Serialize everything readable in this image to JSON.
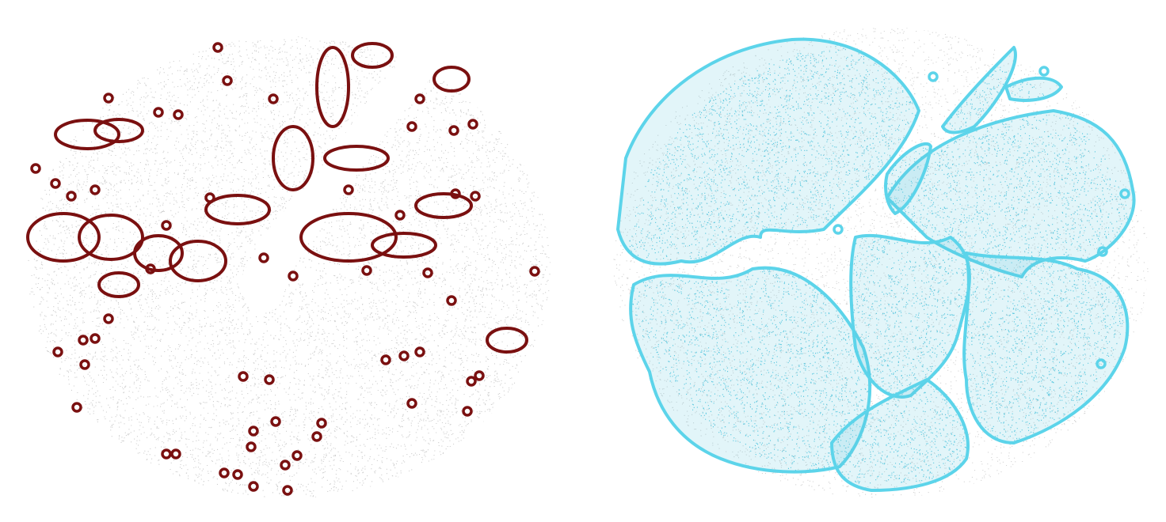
{
  "panels": [
    {
      "id": "left-panel",
      "background_point_color": "#bdbdbd",
      "highlight_color": "#7a1010",
      "highlight_fill_point_color": "#8b1a1a"
    },
    {
      "id": "right-panel",
      "background_point_color": "#c4c4c4",
      "highlight_color": "#5cd4ea",
      "highlight_fill_point_color": "#5cc8e0"
    }
  ]
}
